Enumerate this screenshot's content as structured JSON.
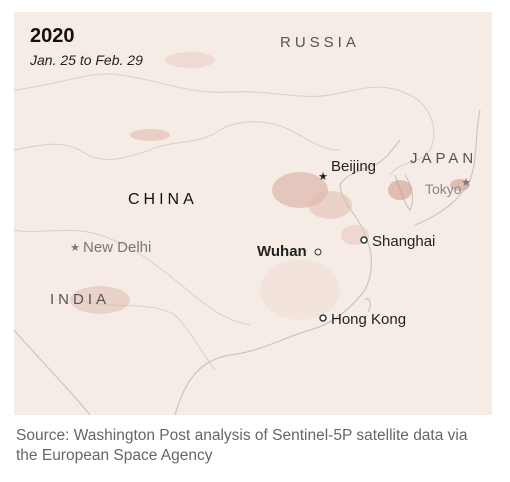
{
  "header": {
    "title": "2020",
    "subtitle": "Jan. 25 to Feb. 29"
  },
  "regions": [
    "RUSSIA",
    "CHINA",
    "JAPAN",
    "INDIA"
  ],
  "cities": [
    "Beijing",
    "Tokyo",
    "New Delhi",
    "Wuhan",
    "Shanghai",
    "Hong Kong"
  ],
  "source": "Source: Washington Post analysis of Sentinel-5P satellite data via the European Space Agency"
}
